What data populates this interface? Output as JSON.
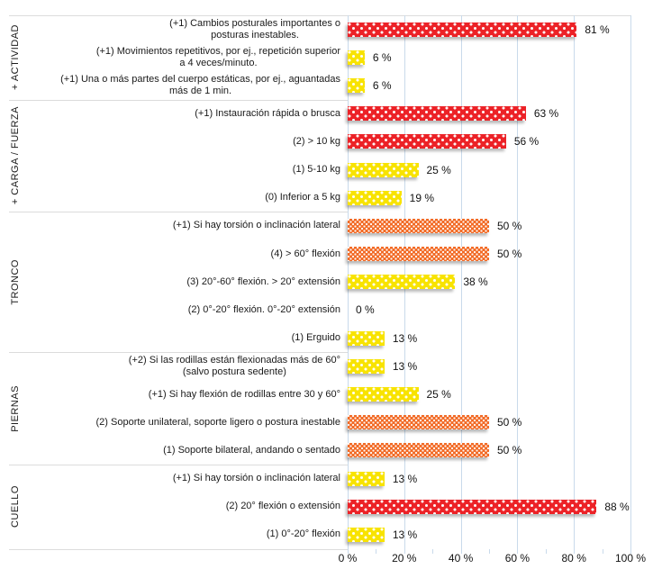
{
  "chart_data": {
    "type": "bar",
    "orientation": "horizontal",
    "value_unit": "%",
    "xlim": [
      0,
      100
    ],
    "x_ticks": [
      "0 %",
      "20 %",
      "40 %",
      "60 %",
      "80 %",
      "100 %"
    ],
    "x_tick_values": [
      0,
      20,
      40,
      60,
      80,
      100
    ],
    "minor_tick_step": 10,
    "grid": true,
    "colors": {
      "red": "#EC2227",
      "orange": "#F26A25",
      "yellow": "#F8E300"
    },
    "gridline_color": "#C9DAEB",
    "separator_color": "#DCDCDC",
    "groups": [
      {
        "name": "+ ACTIVIDAD",
        "items": [
          {
            "label": "(+1) Cambios posturales importantes o\nposturas inestables.",
            "value": 81,
            "value_label": "81 %",
            "color": "red"
          },
          {
            "label": "(+1) Movimientos repetitivos, por ej., repetición superior\na 4 veces/minuto.",
            "value": 6,
            "value_label": "6 %",
            "color": "yellow"
          },
          {
            "label": "(+1) Una o más partes del cuerpo estáticas, por ej., aguantadas\nmás de 1 min.",
            "value": 6,
            "value_label": "6 %",
            "color": "yellow"
          }
        ]
      },
      {
        "name": "+ CARGA / FUERZA",
        "items": [
          {
            "label": "(+1) Instauración rápida o brusca",
            "value": 63,
            "value_label": "63 %",
            "color": "red"
          },
          {
            "label": "(2) > 10 kg",
            "value": 56,
            "value_label": "56 %",
            "color": "red"
          },
          {
            "label": "(1) 5-10 kg",
            "value": 25,
            "value_label": "25 %",
            "color": "yellow"
          },
          {
            "label": "(0) Inferior a 5 kg",
            "value": 19,
            "value_label": "19 %",
            "color": "yellow"
          }
        ]
      },
      {
        "name": "TRONCO",
        "items": [
          {
            "label": "(+1) Si hay torsión o inclinación lateral",
            "value": 50,
            "value_label": "50 %",
            "color": "orange"
          },
          {
            "label": "(4) > 60° flexión",
            "value": 50,
            "value_label": "50 %",
            "color": "orange"
          },
          {
            "label": "(3) 20°-60° flexión. > 20° extensión",
            "value": 38,
            "value_label": "38 %",
            "color": "yellow"
          },
          {
            "label": "(2) 0°-20° flexión. 0°-20° extensión",
            "value": 0,
            "value_label": "0 %",
            "color": "none"
          },
          {
            "label": "(1) Erguido",
            "value": 13,
            "value_label": "13 %",
            "color": "yellow"
          }
        ]
      },
      {
        "name": "PIERNAS",
        "items": [
          {
            "label": "(+2) Si las rodillas están flexionadas más de 60°\n(salvo postura sedente)",
            "value": 13,
            "value_label": "13 %",
            "color": "yellow"
          },
          {
            "label": "(+1) Si hay flexión de rodillas entre 30 y 60°",
            "value": 25,
            "value_label": "25 %",
            "color": "yellow"
          },
          {
            "label": "(2) Soporte unilateral, soporte ligero o postura inestable",
            "value": 50,
            "value_label": "50 %",
            "color": "orange"
          },
          {
            "label": "(1) Soporte bilateral, andando o sentado",
            "value": 50,
            "value_label": "50 %",
            "color": "orange"
          }
        ]
      },
      {
        "name": "CUELLO",
        "items": [
          {
            "label": "(+1) Si hay torsión o inclinación lateral",
            "value": 13,
            "value_label": "13 %",
            "color": "yellow"
          },
          {
            "label": "(2) 20° flexión o extensión",
            "value": 88,
            "value_label": "88 %",
            "color": "red"
          },
          {
            "label": "(1) 0°-20° flexión",
            "value": 13,
            "value_label": "13 %",
            "color": "yellow"
          }
        ]
      }
    ]
  }
}
